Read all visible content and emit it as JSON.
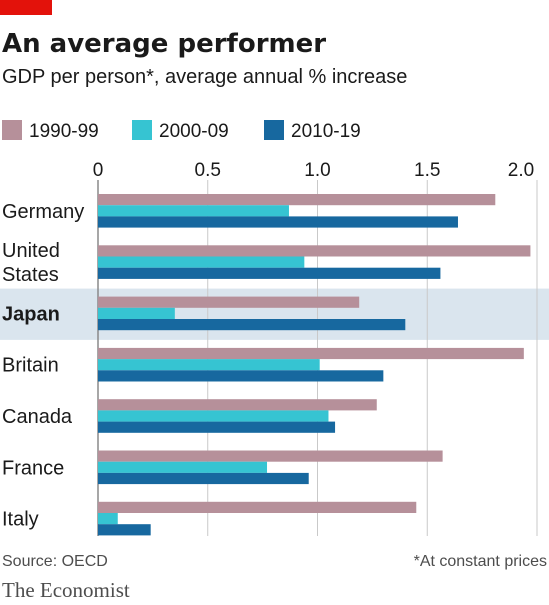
{
  "title": "An average performer",
  "subtitle": "GDP per person*, average annual % increase",
  "source": "Source: OECD",
  "footnote": "*At constant prices",
  "brand": "The Economist",
  "colors": {
    "1990-99": "#b6909a",
    "2000-09": "#36c4d2",
    "2010-19": "#17689f",
    "highlight": "#dae5ee",
    "tag": "#e3120b"
  },
  "chart_data": {
    "type": "bar",
    "orientation": "horizontal",
    "title": "An average performer",
    "subtitle": "GDP per person*, average annual % increase",
    "xlim": [
      0,
      2.0
    ],
    "xticks": [
      "0",
      "0.5",
      "1.0",
      "1.5",
      "2.0"
    ],
    "xtick_values": [
      0,
      0.5,
      1.0,
      1.5,
      2.0
    ],
    "grid": true,
    "legend_position": "top",
    "categories": [
      {
        "lines": [
          "Germany"
        ],
        "bold": false,
        "highlight": false
      },
      {
        "lines": [
          "United",
          "States"
        ],
        "bold": false,
        "highlight": false
      },
      {
        "lines": [
          "Japan"
        ],
        "bold": true,
        "highlight": true
      },
      {
        "lines": [
          "Britain"
        ],
        "bold": false,
        "highlight": false
      },
      {
        "lines": [
          "Canada"
        ],
        "bold": false,
        "highlight": false
      },
      {
        "lines": [
          "France"
        ],
        "bold": false,
        "highlight": false
      },
      {
        "lines": [
          "Italy"
        ],
        "bold": false,
        "highlight": false
      }
    ],
    "series": [
      {
        "name": "1990-99",
        "values": [
          1.81,
          1.97,
          1.19,
          1.94,
          1.27,
          1.57,
          1.45
        ]
      },
      {
        "name": "2000-09",
        "values": [
          0.87,
          0.94,
          0.35,
          1.01,
          1.05,
          0.77,
          0.09
        ]
      },
      {
        "name": "2010-19",
        "values": [
          1.64,
          1.56,
          1.4,
          1.3,
          1.08,
          0.96,
          0.24
        ]
      }
    ]
  }
}
